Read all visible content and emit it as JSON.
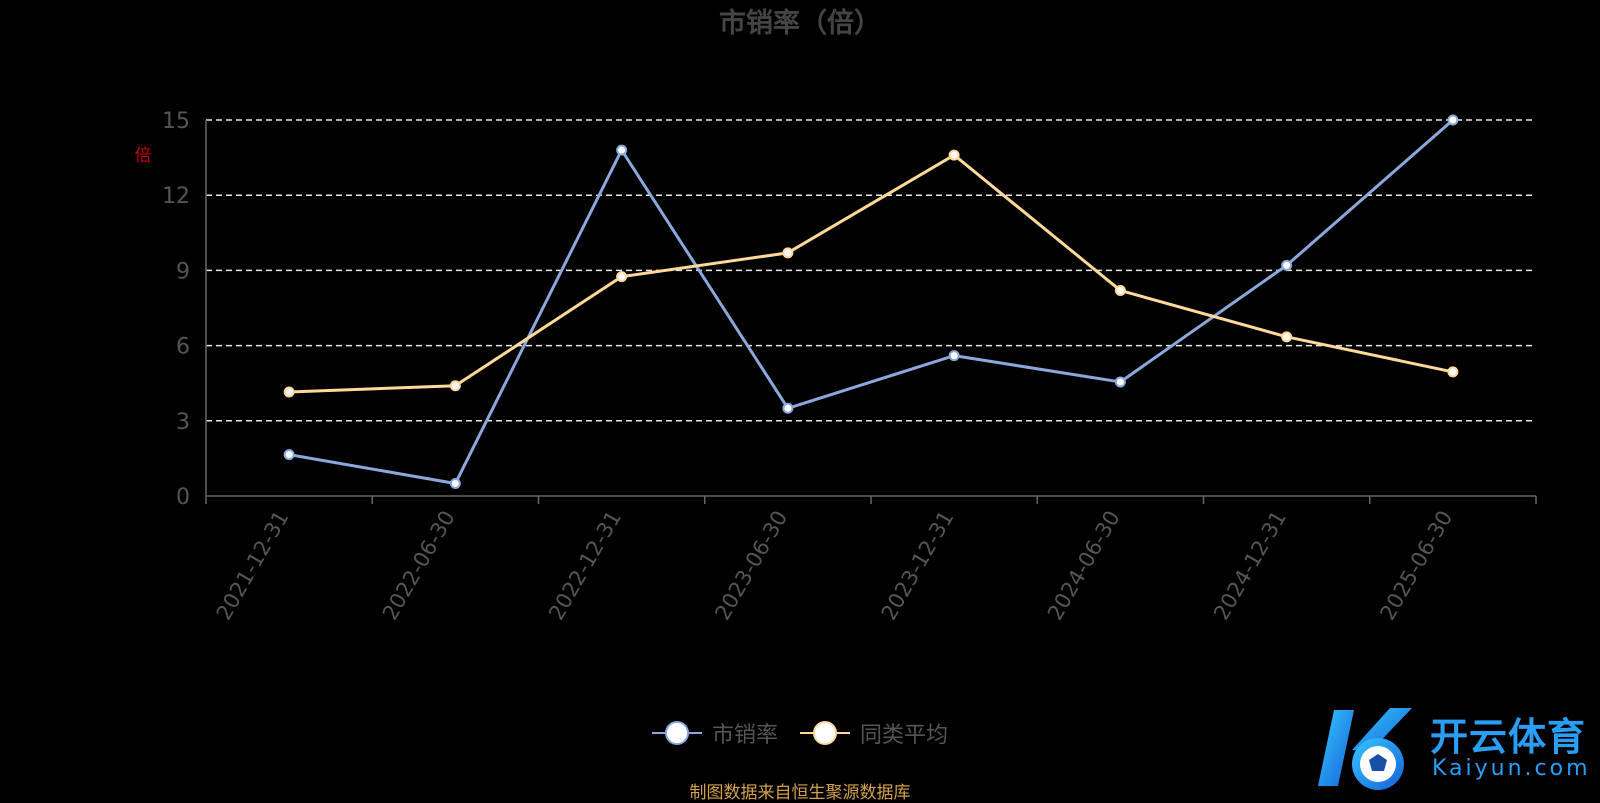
{
  "chart_data": {
    "type": "line",
    "title": "市销率（倍）",
    "ylabel": "倍",
    "categories": [
      "2021-12-31",
      "2022-06-30",
      "2022-12-31",
      "2023-06-30",
      "2023-12-31",
      "2024-06-30",
      "2024-12-31",
      "2025-06-30"
    ],
    "yticks": [
      "0",
      "3",
      "6",
      "9",
      "12",
      "15"
    ],
    "ylim": [
      0,
      15
    ],
    "grid": true,
    "legend_position": "bottom",
    "series": [
      {
        "name": "市销率",
        "color": "#8aa8dc",
        "values": [
          1.65,
          0.5,
          13.8,
          3.5,
          5.6,
          4.55,
          9.2,
          15.0
        ]
      },
      {
        "name": "同类平均",
        "color": "#ffd99a",
        "values": [
          4.15,
          4.4,
          8.75,
          9.7,
          13.6,
          8.2,
          6.35,
          4.95
        ]
      }
    ]
  },
  "source_note": "制图数据来自恒生聚源数据库",
  "watermark": {
    "cn": "开云体育",
    "en": "Kaiyun.com"
  }
}
